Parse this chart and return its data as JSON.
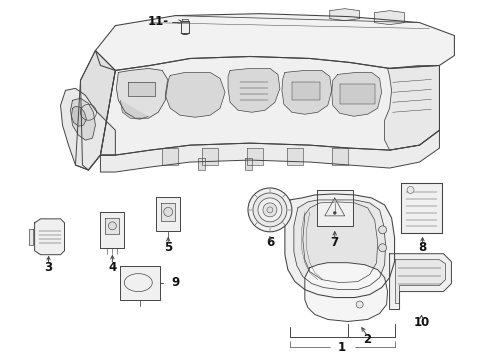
{
  "background_color": "#ffffff",
  "line_color": "#444444",
  "lw": 0.7,
  "figsize": [
    4.9,
    3.6
  ],
  "dpi": 100
}
